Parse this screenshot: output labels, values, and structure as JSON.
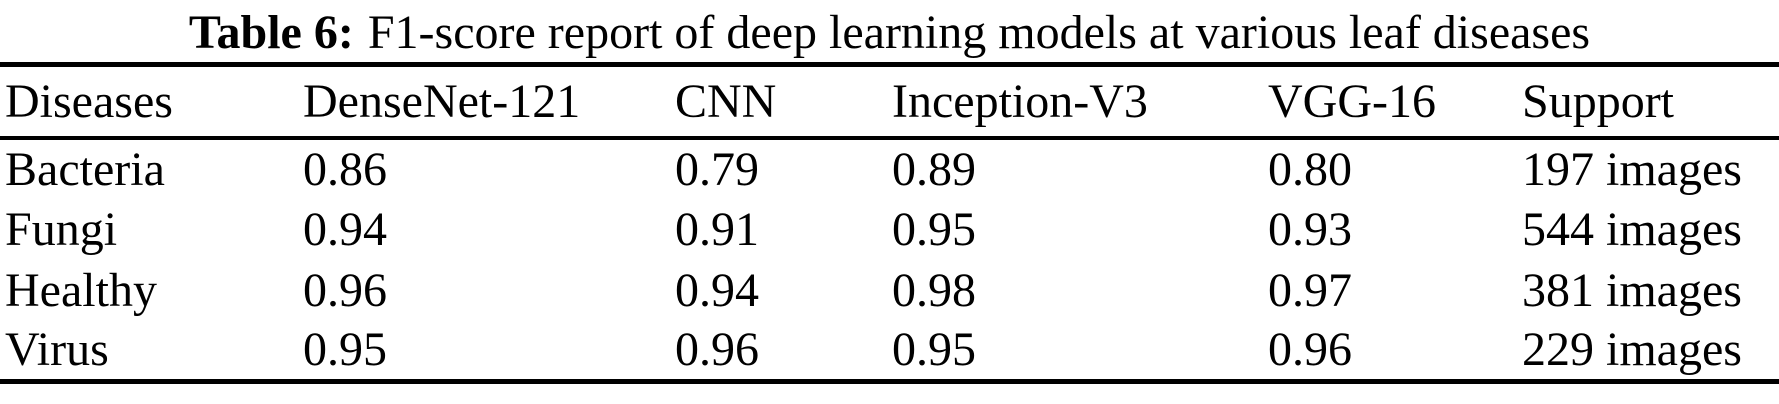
{
  "caption": {
    "label": "Table 6:",
    "title": "F1-score report of deep learning models at various leaf diseases"
  },
  "chart_data": {
    "type": "table",
    "title": "Table 6: F1-score report of deep learning models at various leaf diseases",
    "columns": [
      "Diseases",
      "DenseNet-121",
      "CNN",
      "Inception-V3",
      "VGG-16",
      "Support"
    ],
    "rows": [
      [
        "Bacteria",
        "0.86",
        "0.79",
        "0.89",
        "0.80",
        "197 images"
      ],
      [
        "Fungi",
        "0.94",
        "0.91",
        "0.95",
        "0.93",
        "544 images"
      ],
      [
        "Healthy",
        "0.96",
        "0.94",
        "0.98",
        "0.97",
        "381 images"
      ],
      [
        "Virus",
        "0.95",
        "0.96",
        "0.95",
        "0.96",
        "229 images"
      ]
    ]
  },
  "table": {
    "headers": [
      "Diseases",
      "DenseNet-121",
      "CNN",
      "Inception-V3",
      "VGG-16",
      "Support"
    ],
    "rows": [
      [
        "Bacteria",
        "0.86",
        "0.79",
        "0.89",
        "0.80",
        "197 images"
      ],
      [
        "Fungi",
        "0.94",
        "0.91",
        "0.95",
        "0.93",
        "544 images"
      ],
      [
        "Healthy",
        "0.96",
        "0.94",
        "0.98",
        "0.97",
        "381 images"
      ],
      [
        "Virus",
        "0.95",
        "0.96",
        "0.95",
        "0.96",
        "229 images"
      ]
    ]
  },
  "colors": {
    "text": "#000000",
    "background": "#ffffff",
    "rule": "#000000"
  }
}
